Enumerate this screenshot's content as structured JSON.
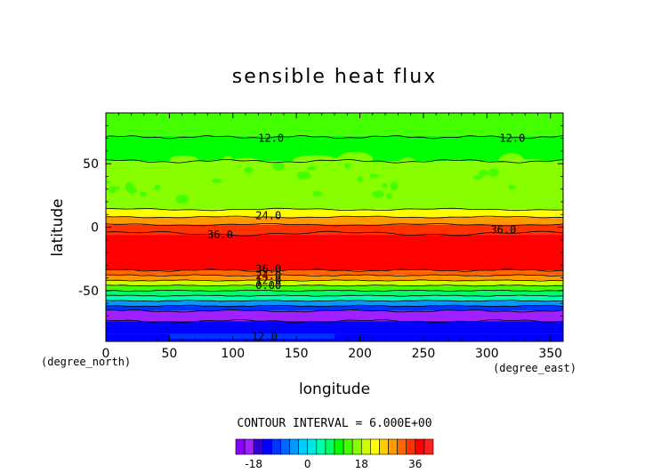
{
  "chart_data": {
    "type": "heatmap",
    "title": "sensible heat flux",
    "xlabel": "longitude",
    "ylabel": "latitude",
    "x_unit": "(degree_east)",
    "y_unit": "(degree_north)",
    "xlim": [
      0,
      360
    ],
    "ylim": [
      -90,
      90
    ],
    "x_ticks": [
      0,
      50,
      100,
      150,
      200,
      250,
      300,
      350
    ],
    "y_ticks": [
      -50,
      0,
      50
    ],
    "grid": false,
    "contour_interval_text": "CONTOUR INTERVAL = 6.000E+00",
    "contour_interval": 6.0,
    "colorbar": {
      "levels": [
        -24,
        -21,
        -18,
        -15,
        -12,
        -9,
        -6,
        -3,
        0,
        3,
        6,
        9,
        12,
        15,
        18,
        21,
        24,
        27,
        30,
        33,
        36,
        39,
        42
      ],
      "colors": [
        "#8800ff",
        "#a020ff",
        "#3300cc",
        "#0000ff",
        "#0033ff",
        "#0066ff",
        "#0099ff",
        "#00ccff",
        "#00e6e6",
        "#00ffaa",
        "#00ff66",
        "#00ff00",
        "#44ff00",
        "#88ff00",
        "#ccff00",
        "#ffff00",
        "#ffcc00",
        "#ff9900",
        "#ff6600",
        "#ff3300",
        "#ff0000",
        "#ff2020"
      ],
      "tick_labels": [
        "-18",
        "0",
        "18",
        "36"
      ],
      "tick_values": [
        -18,
        0,
        18,
        36
      ]
    },
    "zonal_profile": [
      {
        "lat_from": 90,
        "lat_to": 72,
        "value": 13.5
      },
      {
        "lat_from": 72,
        "lat_to": 52,
        "value": 11
      },
      {
        "lat_from": 52,
        "lat_to": 14,
        "value": 15
      },
      {
        "lat_from": 14,
        "lat_to": 8,
        "value": 22
      },
      {
        "lat_from": 8,
        "lat_to": 2,
        "value": 29
      },
      {
        "lat_from": 2,
        "lat_to": -6,
        "value": 33
      },
      {
        "lat_from": -6,
        "lat_to": -34,
        "value": 38
      },
      {
        "lat_from": -34,
        "lat_to": -38,
        "value": 32
      },
      {
        "lat_from": -38,
        "lat_to": -42,
        "value": 27
      },
      {
        "lat_from": -42,
        "lat_to": -46,
        "value": 20
      },
      {
        "lat_from": -46,
        "lat_to": -50,
        "value": 14
      },
      {
        "lat_from": -50,
        "lat_to": -54,
        "value": 8
      },
      {
        "lat_from": -54,
        "lat_to": -58,
        "value": 3
      },
      {
        "lat_from": -58,
        "lat_to": -62,
        "value": -4
      },
      {
        "lat_from": -62,
        "lat_to": -66,
        "value": -12
      },
      {
        "lat_from": -66,
        "lat_to": -74,
        "value": -20
      },
      {
        "lat_from": -74,
        "lat_to": -84,
        "value": -14
      },
      {
        "lat_from": -84,
        "lat_to": -90,
        "value": -13
      }
    ],
    "contour_labels": [
      {
        "text": "12.0",
        "lon": 130,
        "lat": 70
      },
      {
        "text": "12.0",
        "lon": 320,
        "lat": 70
      },
      {
        "text": "24.0",
        "lon": 128,
        "lat": 9
      },
      {
        "text": "36.0",
        "lon": 90,
        "lat": -6
      },
      {
        "text": "36.0",
        "lon": 313,
        "lat": -2
      },
      {
        "text": "36.0",
        "lon": 128,
        "lat": -33
      },
      {
        "text": "24.0",
        "lon": 128,
        "lat": -38
      },
      {
        "text": "12.0",
        "lon": 128,
        "lat": -42
      },
      {
        "text": "0.00",
        "lon": 128,
        "lat": -46
      },
      {
        "text": "12.0",
        "lon": 125,
        "lat": -86
      }
    ]
  }
}
